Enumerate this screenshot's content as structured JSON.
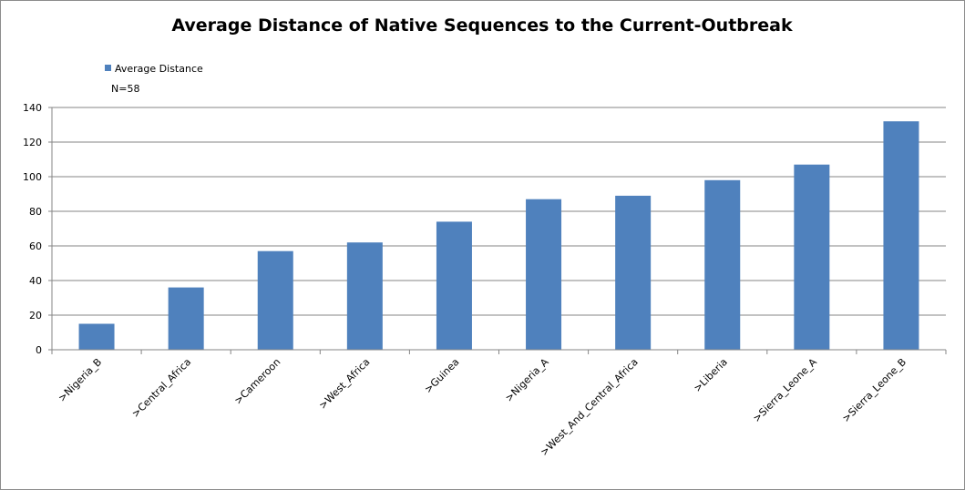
{
  "chart_data": {
    "type": "bar",
    "title": "Average Distance of Native Sequences to the Current-Outbreak",
    "xlabel": "",
    "ylabel": "",
    "categories": [
      ">Nigeria_B",
      ">Central_Africa",
      ">Cameroon",
      ">West_Africa",
      ">Guinea",
      ">Nigeria_A",
      ">West_And_Central_Africa",
      ">Liberia",
      ">Sierra_Leone_A",
      ">Sierra_Leone_B"
    ],
    "series": [
      {
        "name": "Average Distance",
        "values": [
          15,
          36,
          57,
          62,
          74,
          87,
          89,
          98,
          107,
          132
        ]
      }
    ],
    "annotation": "N=58",
    "ylim": [
      0,
      140
    ],
    "yticks": [
      "0",
      "20",
      "40",
      "60",
      "80",
      "100",
      "120",
      "140"
    ],
    "grid": true,
    "legend_position": "top-left",
    "bar_color": "#4f81bd",
    "grid_color": "#868686"
  }
}
